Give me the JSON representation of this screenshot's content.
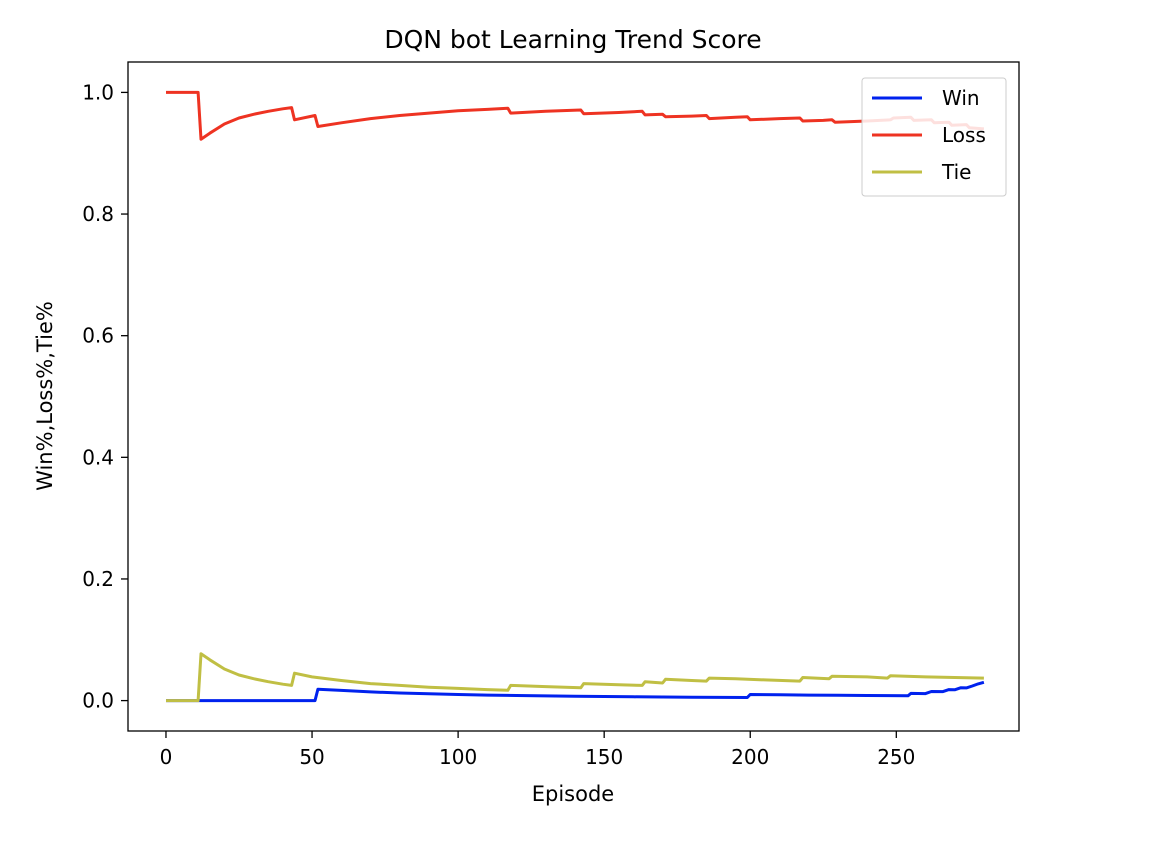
{
  "chart_data": {
    "type": "line",
    "title": "DQN bot Learning Trend Score",
    "xlabel": "Episode",
    "ylabel": "Win%,Loss%,Tie%",
    "xlim": [
      -13,
      292
    ],
    "ylim": [
      -0.05,
      1.05
    ],
    "xticks": [
      0,
      50,
      100,
      150,
      200,
      250
    ],
    "yticks": [
      0.0,
      0.2,
      0.4,
      0.6,
      0.8,
      1.0
    ],
    "xtick_labels": [
      "0",
      "50",
      "100",
      "150",
      "200",
      "250"
    ],
    "ytick_labels": [
      "0.0",
      "0.2",
      "0.4",
      "0.6",
      "0.8",
      "1.0"
    ],
    "grid": false,
    "legend_position": "upper-right",
    "series": [
      {
        "name": "Win",
        "color": "#0022ee",
        "x": [
          0,
          11,
          20,
          30,
          40,
          51,
          52,
          60,
          70,
          80,
          90,
          100,
          110,
          120,
          130,
          140,
          150,
          160,
          170,
          180,
          190,
          199,
          200,
          210,
          220,
          230,
          240,
          254,
          255,
          260,
          262,
          266,
          268,
          270,
          272,
          274,
          276,
          278,
          280
        ],
        "y": [
          0.0,
          0.0,
          0.0,
          0.0,
          0.0,
          0.0,
          0.0185,
          0.0167,
          0.0143,
          0.0125,
          0.0111,
          0.01,
          0.0091,
          0.0083,
          0.0077,
          0.0071,
          0.0067,
          0.0063,
          0.0059,
          0.0056,
          0.0053,
          0.005,
          0.01,
          0.0095,
          0.0091,
          0.0087,
          0.0083,
          0.0079,
          0.0118,
          0.0115,
          0.015,
          0.0148,
          0.018,
          0.0178,
          0.021,
          0.0208,
          0.024,
          0.0275,
          0.03
        ]
      },
      {
        "name": "Loss",
        "color": "#ee3322",
        "x": [
          0,
          11,
          12,
          15,
          20,
          25,
          30,
          35,
          40,
          43,
          44,
          50,
          51,
          52,
          60,
          70,
          80,
          90,
          100,
          110,
          117,
          118,
          130,
          142,
          143,
          155,
          163,
          164,
          170,
          171,
          180,
          185,
          186,
          195,
          199,
          200,
          210,
          217,
          218,
          225,
          228,
          229,
          240,
          248,
          249,
          255,
          256,
          262,
          263,
          268,
          269,
          274,
          275,
          280
        ],
        "y": [
          1.0,
          1.0,
          0.923,
          0.933,
          0.948,
          0.958,
          0.964,
          0.969,
          0.973,
          0.975,
          0.955,
          0.961,
          0.962,
          0.944,
          0.95,
          0.957,
          0.962,
          0.966,
          0.97,
          0.972,
          0.974,
          0.966,
          0.969,
          0.971,
          0.965,
          0.967,
          0.969,
          0.963,
          0.964,
          0.96,
          0.961,
          0.962,
          0.957,
          0.959,
          0.96,
          0.955,
          0.957,
          0.958,
          0.953,
          0.954,
          0.955,
          0.951,
          0.953,
          0.955,
          0.958,
          0.959,
          0.954,
          0.955,
          0.95,
          0.951,
          0.946,
          0.947,
          0.942,
          0.94
        ]
      },
      {
        "name": "Tie",
        "color": "#c0bf44",
        "x": [
          0,
          11,
          12,
          15,
          20,
          25,
          30,
          35,
          40,
          43,
          44,
          50,
          60,
          70,
          80,
          90,
          100,
          110,
          117,
          118,
          130,
          142,
          143,
          155,
          163,
          164,
          170,
          171,
          180,
          185,
          186,
          195,
          205,
          217,
          218,
          227,
          228,
          240,
          247,
          248,
          260,
          270,
          280
        ],
        "y": [
          0.0,
          0.0,
          0.077,
          0.067,
          0.052,
          0.042,
          0.036,
          0.031,
          0.027,
          0.025,
          0.045,
          0.039,
          0.033,
          0.028,
          0.025,
          0.022,
          0.02,
          0.018,
          0.017,
          0.025,
          0.023,
          0.021,
          0.028,
          0.026,
          0.025,
          0.031,
          0.029,
          0.035,
          0.033,
          0.032,
          0.037,
          0.036,
          0.034,
          0.032,
          0.038,
          0.036,
          0.04,
          0.039,
          0.037,
          0.041,
          0.039,
          0.038,
          0.037
        ]
      }
    ]
  }
}
